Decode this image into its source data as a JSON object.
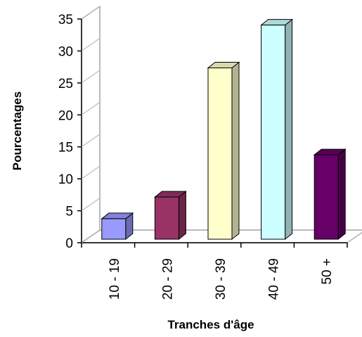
{
  "chart_data": {
    "type": "bar",
    "categories": [
      "10 - 19",
      "20 - 29",
      "30 - 39",
      "40 - 49",
      "50 +"
    ],
    "values": [
      3.2,
      6.6,
      26.8,
      33.5,
      13.2
    ],
    "title": "",
    "xlabel": "Tranches d'âge",
    "ylabel": "Pourcentages",
    "ylim": [
      0,
      35
    ],
    "yticks": [
      0,
      5,
      10,
      15,
      20,
      25,
      30,
      35
    ],
    "grid": false,
    "legend": "none",
    "bar_colors": [
      "#9999ff",
      "#993366",
      "#ffffcc",
      "#ccffff",
      "#660066"
    ]
  }
}
